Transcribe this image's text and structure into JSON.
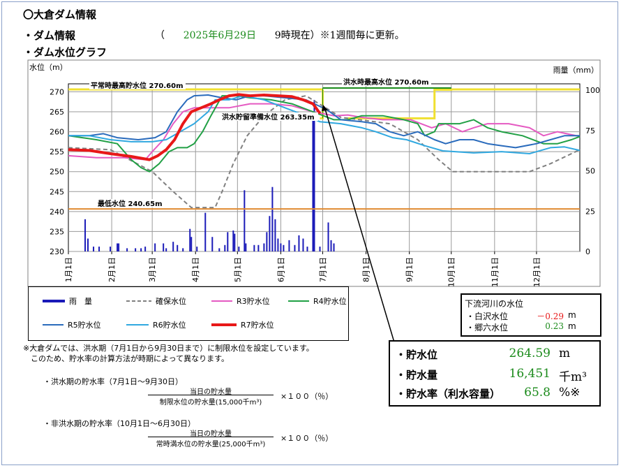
{
  "header": {
    "title": "〇大倉ダム情報",
    "section1": "・ダム情報",
    "date_open": "（",
    "date": "2025年6月29日",
    "time_text": "9時現在）※1週間毎に更新。",
    "section2": "・ダム水位グラフ"
  },
  "chart_data": {
    "type": "line",
    "ylabel": "水位（m）",
    "y2label": "雨量（mm）",
    "ylim": [
      230,
      272
    ],
    "y2lim": [
      0,
      104
    ],
    "yticks": [
      "230",
      "235",
      "240",
      "245",
      "250",
      "255",
      "260",
      "265",
      "270"
    ],
    "y2ticks": [
      "0",
      "25",
      "50",
      "75",
      "100"
    ],
    "months": [
      "1月1日",
      "2月1日",
      "3月1日",
      "4月1日",
      "5月1日",
      "6月1日",
      "7月1日",
      "8月1日",
      "9月1日",
      "10月1日",
      "11月1日",
      "12月1日"
    ],
    "days_per_year": 366,
    "annotations": {
      "normal_max": "平常時最高貯水位 270.60m",
      "flood_max": "洪水時最高水位 270.60m",
      "flood_reserve": "洪水貯留準備水位 263.35m",
      "min_level": "最低水位 240.65m"
    },
    "reference_levels": {
      "normal_max": 270.6,
      "flood_reserve": 263.35,
      "min_level": 240.65
    },
    "rain_bars": [
      [
        12,
        20
      ],
      [
        14,
        8
      ],
      [
        18,
        3
      ],
      [
        22,
        3
      ],
      [
        30,
        3
      ],
      [
        35,
        5
      ],
      [
        36,
        5
      ],
      [
        42,
        2
      ],
      [
        48,
        2
      ],
      [
        52,
        2
      ],
      [
        55,
        3
      ],
      [
        62,
        5
      ],
      [
        68,
        5
      ],
      [
        70,
        2
      ],
      [
        75,
        6
      ],
      [
        78,
        4
      ],
      [
        82,
        2
      ],
      [
        87,
        14
      ],
      [
        88,
        9
      ],
      [
        92,
        3
      ],
      [
        98,
        24
      ],
      [
        103,
        9
      ],
      [
        108,
        2
      ],
      [
        112,
        4
      ],
      [
        114,
        12
      ],
      [
        118,
        13
      ],
      [
        119,
        11
      ],
      [
        122,
        3
      ],
      [
        126,
        38
      ],
      [
        127,
        5
      ],
      [
        133,
        4
      ],
      [
        136,
        4
      ],
      [
        140,
        5
      ],
      [
        142,
        12
      ],
      [
        144,
        22
      ],
      [
        146,
        40
      ],
      [
        148,
        20
      ],
      [
        150,
        8
      ],
      [
        152,
        5
      ],
      [
        154,
        4
      ],
      [
        158,
        7
      ],
      [
        162,
        4
      ],
      [
        165,
        10
      ],
      [
        168,
        8
      ],
      [
        171,
        3
      ],
      [
        175,
        85
      ],
      [
        176,
        94
      ],
      [
        180,
        3
      ],
      [
        186,
        18
      ],
      [
        188,
        7
      ],
      [
        190,
        5
      ]
    ],
    "series": [
      {
        "name": "雨　量",
        "color": "#1a1ab8",
        "kind": "bar"
      },
      {
        "name": "確保水位",
        "color": "#808080",
        "dash": true,
        "points": [
          [
            0,
            256
          ],
          [
            30,
            255.5
          ],
          [
            60,
            250
          ],
          [
            75,
            245
          ],
          [
            88,
            241
          ],
          [
            105,
            241
          ],
          [
            110,
            245
          ],
          [
            118,
            252
          ],
          [
            128,
            259
          ],
          [
            140,
            264
          ],
          [
            155,
            268
          ],
          [
            170,
            269
          ],
          [
            185,
            265.8
          ],
          [
            195,
            263.6
          ],
          [
            230,
            262
          ],
          [
            250,
            258
          ],
          [
            265,
            253
          ],
          [
            275,
            250
          ],
          [
            300,
            250
          ],
          [
            330,
            250
          ],
          [
            345,
            252
          ],
          [
            366,
            255.5
          ]
        ]
      },
      {
        "name": "R3貯水位",
        "color": "#e55ac2",
        "points": [
          [
            0,
            254
          ],
          [
            20,
            253.5
          ],
          [
            40,
            253.5
          ],
          [
            55,
            253
          ],
          [
            60,
            255
          ],
          [
            68,
            258
          ],
          [
            75,
            262
          ],
          [
            82,
            265
          ],
          [
            90,
            266
          ],
          [
            100,
            266
          ],
          [
            115,
            266
          ],
          [
            130,
            267
          ],
          [
            145,
            267
          ],
          [
            160,
            266.5
          ],
          [
            175,
            265
          ],
          [
            190,
            264
          ],
          [
            200,
            264.2
          ],
          [
            210,
            263.6
          ],
          [
            225,
            263
          ],
          [
            245,
            263
          ],
          [
            260,
            261
          ],
          [
            270,
            262
          ],
          [
            282,
            260
          ],
          [
            290,
            261
          ],
          [
            300,
            262
          ],
          [
            315,
            262
          ],
          [
            330,
            261
          ],
          [
            340,
            259
          ],
          [
            350,
            260
          ],
          [
            366,
            258.8
          ]
        ]
      },
      {
        "name": "R4貯水位",
        "color": "#21a045",
        "points": [
          [
            0,
            259
          ],
          [
            10,
            258.5
          ],
          [
            20,
            258
          ],
          [
            35,
            257
          ],
          [
            45,
            253
          ],
          [
            52,
            251
          ],
          [
            58,
            250
          ],
          [
            65,
            252
          ],
          [
            72,
            255
          ],
          [
            78,
            256
          ],
          [
            85,
            256
          ],
          [
            90,
            257
          ],
          [
            96,
            260
          ],
          [
            102,
            264
          ],
          [
            110,
            269
          ],
          [
            120,
            269
          ],
          [
            130,
            268.5
          ],
          [
            145,
            268
          ],
          [
            160,
            267
          ],
          [
            175,
            265
          ],
          [
            190,
            263
          ],
          [
            200,
            263
          ],
          [
            210,
            264
          ],
          [
            225,
            264
          ],
          [
            240,
            263
          ],
          [
            250,
            262
          ],
          [
            255,
            259
          ],
          [
            262,
            260
          ],
          [
            265,
            262
          ],
          [
            270,
            262
          ],
          [
            280,
            262
          ],
          [
            290,
            263
          ],
          [
            300,
            261
          ],
          [
            310,
            260
          ],
          [
            325,
            259
          ],
          [
            340,
            257
          ],
          [
            350,
            257
          ],
          [
            360,
            258
          ],
          [
            366,
            258.8
          ]
        ]
      },
      {
        "name": "R5貯水位",
        "color": "#2a6bbc",
        "points": [
          [
            0,
            259
          ],
          [
            15,
            259
          ],
          [
            25,
            259.5
          ],
          [
            35,
            258.5
          ],
          [
            50,
            258
          ],
          [
            62,
            258.5
          ],
          [
            70,
            260
          ],
          [
            78,
            265
          ],
          [
            85,
            268
          ],
          [
            90,
            269
          ],
          [
            100,
            269.2
          ],
          [
            110,
            268.5
          ],
          [
            120,
            268
          ],
          [
            130,
            269
          ],
          [
            140,
            269
          ],
          [
            155,
            268.5
          ],
          [
            170,
            268
          ],
          [
            185,
            265.5
          ],
          [
            195,
            263
          ],
          [
            210,
            262.5
          ],
          [
            220,
            262
          ],
          [
            230,
            260
          ],
          [
            240,
            259
          ],
          [
            250,
            260
          ],
          [
            262,
            258
          ],
          [
            270,
            257
          ],
          [
            280,
            258
          ],
          [
            290,
            258
          ],
          [
            300,
            257
          ],
          [
            310,
            256.5
          ],
          [
            320,
            256
          ],
          [
            335,
            257
          ],
          [
            345,
            258
          ],
          [
            355,
            259
          ],
          [
            366,
            259
          ]
        ]
      },
      {
        "name": "R6貯水位",
        "color": "#30a8e0",
        "points": [
          [
            0,
            259
          ],
          [
            15,
            259
          ],
          [
            30,
            258
          ],
          [
            45,
            257.5
          ],
          [
            60,
            257.5
          ],
          [
            70,
            258
          ],
          [
            80,
            260
          ],
          [
            90,
            262
          ],
          [
            100,
            265
          ],
          [
            105,
            268
          ],
          [
            115,
            268
          ],
          [
            125,
            269
          ],
          [
            140,
            268
          ],
          [
            155,
            266
          ],
          [
            170,
            264
          ],
          [
            180,
            262.5
          ],
          [
            195,
            262
          ],
          [
            210,
            261
          ],
          [
            220,
            260
          ],
          [
            232,
            258.5
          ],
          [
            242,
            258
          ],
          [
            255,
            256.5
          ],
          [
            268,
            255.2
          ],
          [
            290,
            254.7
          ],
          [
            310,
            255
          ],
          [
            330,
            254.5
          ],
          [
            345,
            256
          ],
          [
            355,
            256.2
          ],
          [
            366,
            255.3
          ]
        ]
      },
      {
        "name": "R7貯水位",
        "color": "#e81818",
        "thick": true,
        "points": [
          [
            0,
            255.5
          ],
          [
            15,
            255.3
          ],
          [
            30,
            254.5
          ],
          [
            45,
            253.8
          ],
          [
            58,
            253
          ],
          [
            64,
            254
          ],
          [
            70,
            255.5
          ],
          [
            76,
            258
          ],
          [
            82,
            262
          ],
          [
            88,
            265
          ],
          [
            95,
            266
          ],
          [
            102,
            267
          ],
          [
            108,
            268
          ],
          [
            115,
            269
          ],
          [
            122,
            269.3
          ],
          [
            130,
            269
          ],
          [
            140,
            269.2
          ],
          [
            150,
            269
          ],
          [
            160,
            268.8
          ],
          [
            168,
            268
          ],
          [
            175,
            267
          ],
          [
            180,
            264.59
          ]
        ]
      }
    ]
  },
  "legend": [
    {
      "label": "雨　量"
    },
    {
      "label": "確保水位"
    },
    {
      "label": "R3貯水位"
    },
    {
      "label": "R4貯水位"
    },
    {
      "label": "R5貯水位"
    },
    {
      "label": "R6貯水位"
    },
    {
      "label": "R7貯水位"
    }
  ],
  "river": {
    "title": "下流河川の水位",
    "rows": [
      {
        "label": "・白沢水位",
        "value": "－0.29",
        "unit": "m",
        "color": "#e81818"
      },
      {
        "label": "・郷六水位",
        "value": "0.23",
        "unit": "m",
        "color": "#1a8a1a"
      }
    ]
  },
  "storage": {
    "rows": [
      {
        "label": "・貯水位",
        "value": "264.59",
        "unit": "m"
      },
      {
        "label": "・貯水量",
        "value": "16,451",
        "unit": "千m³"
      },
      {
        "label": "・貯水率（利水容量）",
        "value": "65.8",
        "unit": "%※"
      }
    ]
  },
  "notes": {
    "line1": "※大倉ダムでは、洪水期（7月1日から9月30日まで）に制限水位を設定しています。",
    "line2": "このため、貯水率の計算方法が時期によって異なります。",
    "flood_title": "・洪水期の貯水率（7月1日～9月30日）",
    "flood_num": "当日の貯水量",
    "flood_den": "制限水位の貯水量(15,000千m³)",
    "flood_mult": "×１００（％）",
    "nonflood_title": "・非洪水期の貯水率（10月1日～6月30日）",
    "nonflood_num": "当日の貯水量",
    "nonflood_den": "常時満水位の貯水量(25,000千m³)",
    "nonflood_mult": "×１００（％）"
  }
}
